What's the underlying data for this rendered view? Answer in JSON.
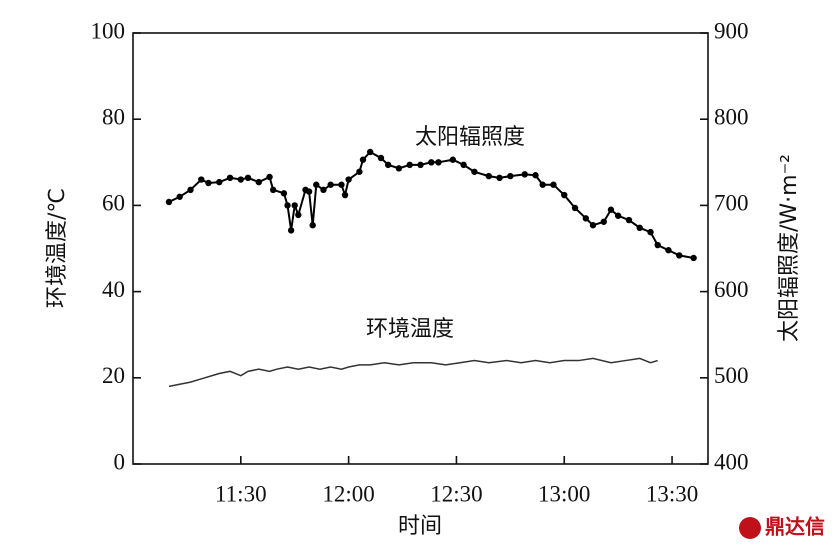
{
  "chart_data": {
    "type": "line",
    "x_label": "时间",
    "y_label": "环境温度/℃",
    "y2_label": "太阳辐照度/W·m⁻²",
    "watermark": "鼎达信",
    "xlim": [
      660,
      820
    ],
    "xticks": [
      {
        "value": 690,
        "label": "11:30"
      },
      {
        "value": 720,
        "label": "12:00"
      },
      {
        "value": 750,
        "label": "12:30"
      },
      {
        "value": 780,
        "label": "13:00"
      },
      {
        "value": 810,
        "label": "13:30"
      }
    ],
    "ylim": [
      0,
      100
    ],
    "yticks": [
      0,
      20,
      40,
      60,
      80,
      100
    ],
    "y2lim": [
      400,
      900
    ],
    "y2ticks": [
      400,
      500,
      600,
      700,
      800,
      900
    ],
    "series": [
      {
        "name": "太阳辐照度",
        "axis": "y2",
        "color": "#000000",
        "markers": true,
        "x": [
          670,
          673,
          676,
          679,
          681,
          684,
          687,
          690,
          692,
          695,
          698,
          699,
          702,
          703,
          704,
          705,
          706,
          708,
          709,
          710,
          711,
          713,
          715,
          718,
          719,
          720,
          723,
          724,
          726,
          729,
          731,
          734,
          737,
          740,
          743,
          745,
          749,
          752,
          755,
          759,
          762,
          765,
          769,
          772,
          774,
          777,
          780,
          783,
          786,
          788,
          791,
          793,
          795,
          798,
          801,
          804,
          806,
          809,
          812,
          816
        ],
        "values": [
          704,
          710,
          718,
          730,
          726,
          727,
          732,
          730,
          732,
          727,
          733,
          718,
          714,
          700,
          671,
          700,
          689,
          718,
          716,
          677,
          724,
          718,
          724,
          724,
          712,
          730,
          739,
          753,
          762,
          755,
          747,
          743,
          747,
          747,
          750,
          750,
          753,
          747,
          739,
          734,
          732,
          734,
          736,
          735,
          724,
          724,
          712,
          697,
          685,
          677,
          681,
          695,
          688,
          683,
          674,
          669,
          654,
          648,
          642,
          639
        ]
      },
      {
        "name": "环境温度",
        "axis": "y",
        "color": "#333333",
        "markers": false,
        "x": [
          670,
          673,
          676,
          678,
          680,
          682,
          684,
          687,
          690,
          692,
          695,
          698,
          700,
          703,
          706,
          709,
          712,
          715,
          718,
          720,
          723,
          726,
          730,
          734,
          738,
          743,
          747,
          751,
          755,
          759,
          764,
          768,
          772,
          776,
          780,
          784,
          788,
          793,
          797,
          801,
          804,
          806
        ],
        "values": [
          18,
          18.5,
          19,
          19.5,
          20,
          20.5,
          21,
          21.5,
          20.5,
          21.5,
          22,
          21.5,
          22,
          22.5,
          22,
          22.5,
          22,
          22.5,
          22,
          22.5,
          23,
          23,
          23.5,
          23,
          23.5,
          23.5,
          23,
          23.5,
          24,
          23.5,
          24,
          23.5,
          24,
          23.5,
          24,
          24,
          24.5,
          23.5,
          24,
          24.5,
          23.5,
          24
        ]
      }
    ]
  }
}
